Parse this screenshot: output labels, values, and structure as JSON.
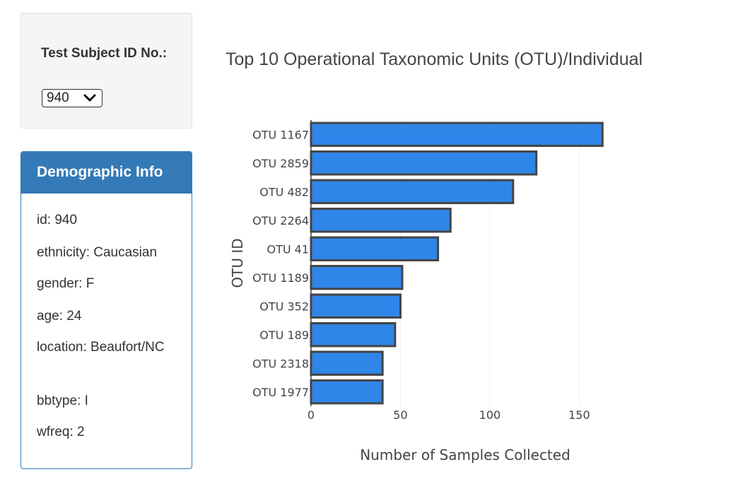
{
  "selector": {
    "label": "Test Subject ID No.:",
    "selected": "940"
  },
  "demographics": {
    "title": "Demographic Info",
    "lines": [
      "id: 940",
      "ethnicity: Caucasian",
      "gender: F",
      "age: 24",
      "location: Beaufort/NC",
      "bbtype: I",
      "wfreq: 2"
    ]
  },
  "colors": {
    "panel_blue": "#337ab7",
    "bar_fill": "#2e86e8",
    "bar_stroke": "#444444"
  },
  "chart_data": {
    "type": "bar",
    "orientation": "horizontal",
    "title": "Top 10 Operational Taxonomic Units (OTU)/Individual",
    "xlabel": "Number of Samples Collected",
    "ylabel": "OTU ID",
    "categories": [
      "OTU 1167",
      "OTU 2859",
      "OTU 482",
      "OTU 2264",
      "OTU 41",
      "OTU 1189",
      "OTU 352",
      "OTU 189",
      "OTU 2318",
      "OTU 1977"
    ],
    "values": [
      163,
      126,
      113,
      78,
      71,
      51,
      50,
      47,
      40,
      40
    ],
    "xlim": [
      0,
      170
    ],
    "xticks": [
      0,
      50,
      100,
      150
    ],
    "grid": true,
    "legend": "none"
  }
}
